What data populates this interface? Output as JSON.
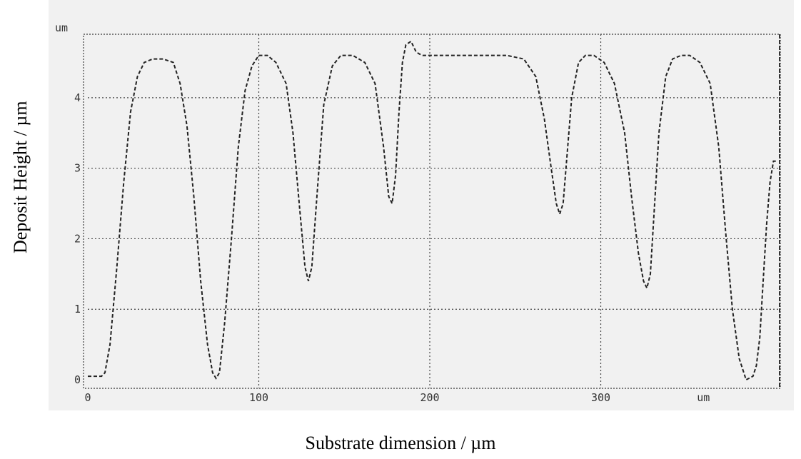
{
  "chart_data": {
    "type": "line",
    "xlabel": "Substrate dimension / µm",
    "ylabel": "Deposit Height / µm",
    "y_unit_tag": "um",
    "x_unit_tag": "um",
    "xlim": [
      0,
      405
    ],
    "ylim": [
      0,
      4.9
    ],
    "x_ticks": [
      0,
      100,
      200,
      300
    ],
    "y_ticks": [
      0,
      1,
      2,
      3,
      4
    ],
    "grid": true,
    "series": [
      {
        "x": [
          0,
          8,
          10,
          13,
          17,
          21,
          25,
          29,
          33,
          38,
          44,
          50,
          54,
          58,
          62,
          66,
          70,
          73,
          75,
          77,
          80,
          84,
          88,
          92,
          96,
          100,
          105,
          110,
          116,
          120,
          124,
          127,
          129,
          131,
          134,
          138,
          143,
          148,
          155,
          162,
          168,
          173,
          176,
          178,
          180,
          182,
          184,
          186,
          189,
          192,
          194,
          196,
          198,
          200,
          215,
          230,
          245,
          255,
          262,
          267,
          271,
          274,
          276,
          278,
          280,
          283,
          287,
          291,
          296,
          302,
          308,
          314,
          318,
          322,
          325,
          327,
          329,
          331,
          334,
          338,
          342,
          347,
          352,
          358,
          364,
          369,
          373,
          377,
          381,
          385,
          389,
          391,
          393,
          395,
          397,
          399,
          401,
          403
        ],
        "y": [
          0.05,
          0.05,
          0.1,
          0.5,
          1.6,
          2.8,
          3.8,
          4.3,
          4.5,
          4.55,
          4.55,
          4.5,
          4.2,
          3.6,
          2.6,
          1.4,
          0.5,
          0.1,
          0.02,
          0.1,
          0.8,
          2.0,
          3.3,
          4.1,
          4.45,
          4.6,
          4.6,
          4.5,
          4.2,
          3.5,
          2.4,
          1.6,
          1.4,
          1.6,
          2.6,
          3.9,
          4.45,
          4.6,
          4.6,
          4.5,
          4.2,
          3.3,
          2.6,
          2.5,
          2.9,
          3.8,
          4.5,
          4.75,
          4.8,
          4.65,
          4.62,
          4.6,
          4.6,
          4.6,
          4.6,
          4.6,
          4.6,
          4.55,
          4.3,
          3.7,
          3.0,
          2.5,
          2.35,
          2.5,
          3.1,
          4.0,
          4.5,
          4.6,
          4.6,
          4.5,
          4.2,
          3.5,
          2.6,
          1.8,
          1.4,
          1.3,
          1.5,
          2.3,
          3.5,
          4.3,
          4.55,
          4.6,
          4.6,
          4.5,
          4.2,
          3.3,
          2.1,
          1.0,
          0.3,
          0.0,
          0.05,
          0.2,
          0.6,
          1.4,
          2.2,
          2.8,
          3.1,
          3.1
        ]
      }
    ]
  }
}
